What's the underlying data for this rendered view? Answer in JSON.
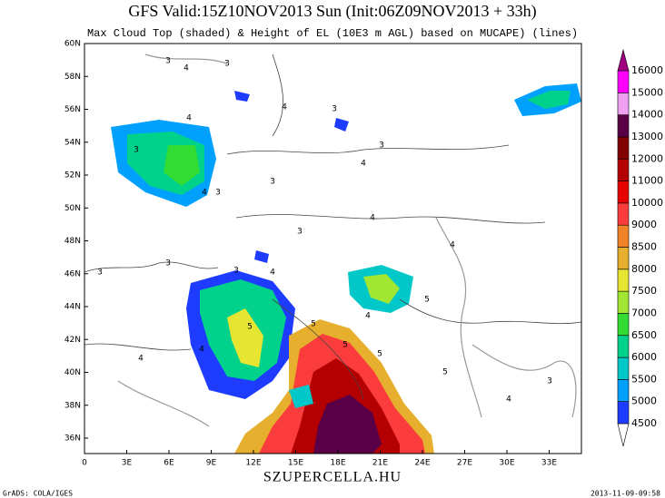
{
  "header": {
    "title": "GFS Valid:15Z10NOV2013 Sun (Init:06Z09NOV2013 + 33h)",
    "subtitle": "Max Cloud Top (shaded) & Height of EL (10E3 m AGL) based on MUCAPE) (lines)"
  },
  "map": {
    "lat_labels": [
      "60N",
      "58N",
      "56N",
      "54N",
      "52N",
      "50N",
      "48N",
      "46N",
      "44N",
      "42N",
      "40N",
      "38N",
      "36N"
    ],
    "lon_labels": [
      "0",
      "3E",
      "6E",
      "9E",
      "12E",
      "15E",
      "18E",
      "21E",
      "24E",
      "27E",
      "30E",
      "33E"
    ],
    "contour_labels": [
      3,
      4,
      3,
      4,
      3,
      4,
      3,
      3,
      4,
      3,
      3,
      4,
      3,
      4,
      3,
      4,
      5,
      5,
      4,
      5,
      4,
      5,
      4,
      3,
      5,
      3,
      4,
      5,
      4,
      3
    ]
  },
  "colorbar": {
    "levels": [
      4500,
      5000,
      5500,
      6000,
      6500,
      7000,
      7500,
      8000,
      8500,
      9000,
      10000,
      11000,
      12000,
      13000,
      14000,
      15000,
      16000
    ],
    "colors": [
      "#ffffff",
      "#1e3cff",
      "#00a0ff",
      "#00c8c8",
      "#00d28c",
      "#32dc32",
      "#a0e632",
      "#e6e632",
      "#e6af2d",
      "#f08228",
      "#fa3c3c",
      "#e60000",
      "#b40000",
      "#820000",
      "#5a0046",
      "#f0a0f0",
      "#ff00ff",
      "#a00080"
    ]
  },
  "footer": {
    "site": "SZUPERCELLA.HU",
    "software": "GrADS: COLA/IGES",
    "timestamp": "2013-11-09-09:58"
  }
}
